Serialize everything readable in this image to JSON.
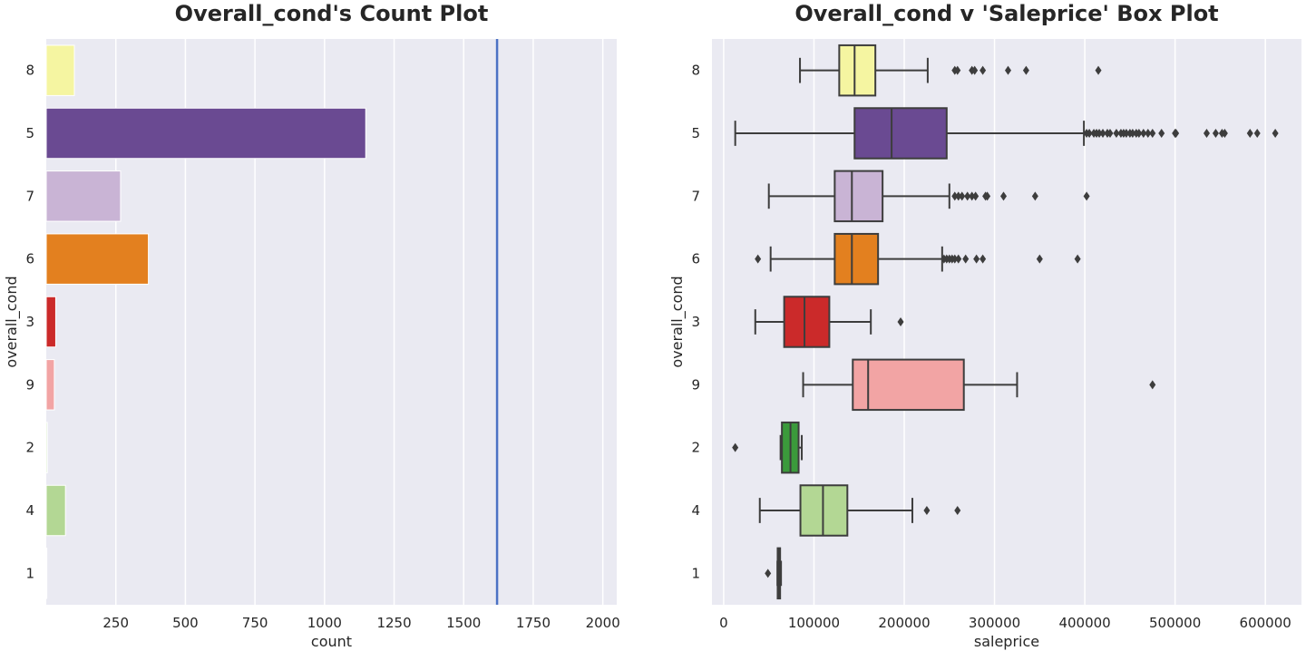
{
  "chart_data": [
    {
      "type": "bar",
      "orientation": "horizontal",
      "title": "Overall_cond's Count Plot",
      "xlabel": "count",
      "ylabel": "overall_cond",
      "categories": [
        "8",
        "5",
        "7",
        "6",
        "3",
        "9",
        "2",
        "4",
        "1"
      ],
      "values": [
        101,
        1148,
        267,
        367,
        34,
        29,
        4,
        69,
        2
      ],
      "colors": [
        "#f5f5a1",
        "#6a4a92",
        "#c9b4d5",
        "#e3801f",
        "#cb2a2a",
        "#f2a4a4",
        "#b9dd97",
        "#b3d794",
        "#3a7fb4"
      ],
      "xlim": [
        0,
        2050
      ],
      "xticks": [
        250,
        500,
        750,
        1000,
        1250,
        1500,
        1750,
        2000
      ],
      "reference_line": {
        "x": 1620,
        "color": "#4c72c4"
      },
      "grid": true
    },
    {
      "type": "box",
      "orientation": "horizontal",
      "title": "Overall_cond v 'Saleprice' Box Plot",
      "xlabel": "saleprice",
      "ylabel": "overall_cond",
      "categories": [
        "8",
        "5",
        "7",
        "6",
        "3",
        "9",
        "2",
        "4",
        "1"
      ],
      "colors": [
        "#f5f5a1",
        "#6a4a92",
        "#c9b4d5",
        "#e3801f",
        "#cb2a2a",
        "#f2a4a4",
        "#3b9a3b",
        "#b3d794",
        "#3a7fb4"
      ],
      "xlim": [
        -13000,
        640000
      ],
      "xticks": [
        0,
        100000,
        200000,
        300000,
        400000,
        500000,
        600000
      ],
      "boxes": [
        {
          "category": "8",
          "whisker_low": 84500,
          "q1": 128000,
          "median": 145000,
          "q3": 168000,
          "whisker_high": 226000,
          "outliers": [
            256000,
            259000,
            275000,
            278000,
            287000,
            315000,
            335000,
            415000
          ]
        },
        {
          "category": "5",
          "whisker_low": 12789,
          "q1": 145000,
          "median": 186000,
          "q3": 247000,
          "whisker_high": 399000,
          "outliers": [
            402000,
            405000,
            410000,
            413000,
            416000,
            420000,
            425000,
            428000,
            435000,
            440000,
            443000,
            446000,
            450000,
            453000,
            457000,
            460000,
            465000,
            470000,
            475000,
            485000,
            500000,
            501000,
            535000,
            545000,
            552000,
            555000,
            583000,
            591000,
            611000
          ]
        },
        {
          "category": "7",
          "whisker_low": 50000,
          "q1": 123000,
          "median": 142000,
          "q3": 176000,
          "whisker_high": 250000,
          "outliers": [
            256000,
            260000,
            264000,
            270000,
            275000,
            279000,
            290000,
            292000,
            310000,
            345000,
            402000
          ]
        },
        {
          "category": "6",
          "whisker_low": 52000,
          "q1": 123000,
          "median": 142000,
          "q3": 171000,
          "whisker_high": 242000,
          "outliers": [
            37900,
            244000,
            247000,
            250000,
            253000,
            256000,
            260000,
            268000,
            280000,
            287000,
            350000,
            392000
          ]
        },
        {
          "category": "3",
          "whisker_low": 35000,
          "q1": 67000,
          "median": 89500,
          "q3": 117000,
          "whisker_high": 163000,
          "outliers": [
            196000
          ]
        },
        {
          "category": "9",
          "whisker_low": 88000,
          "q1": 143000,
          "median": 160000,
          "q3": 266000,
          "whisker_high": 325000,
          "outliers": [
            475000
          ]
        },
        {
          "category": "2",
          "whisker_low": 63000,
          "q1": 64500,
          "median": 74000,
          "q3": 83000,
          "whisker_high": 86500,
          "outliers": [
            12789
          ]
        },
        {
          "category": "4",
          "whisker_low": 40000,
          "q1": 85000,
          "median": 110000,
          "q3": 137000,
          "whisker_high": 209000,
          "outliers": [
            225000,
            259000
          ]
        },
        {
          "category": "1",
          "whisker_low": 59500,
          "q1": 59800,
          "median": 61000,
          "q3": 62500,
          "whisker_high": 63500,
          "outliers": [
            49000
          ]
        }
      ],
      "grid": true
    }
  ]
}
